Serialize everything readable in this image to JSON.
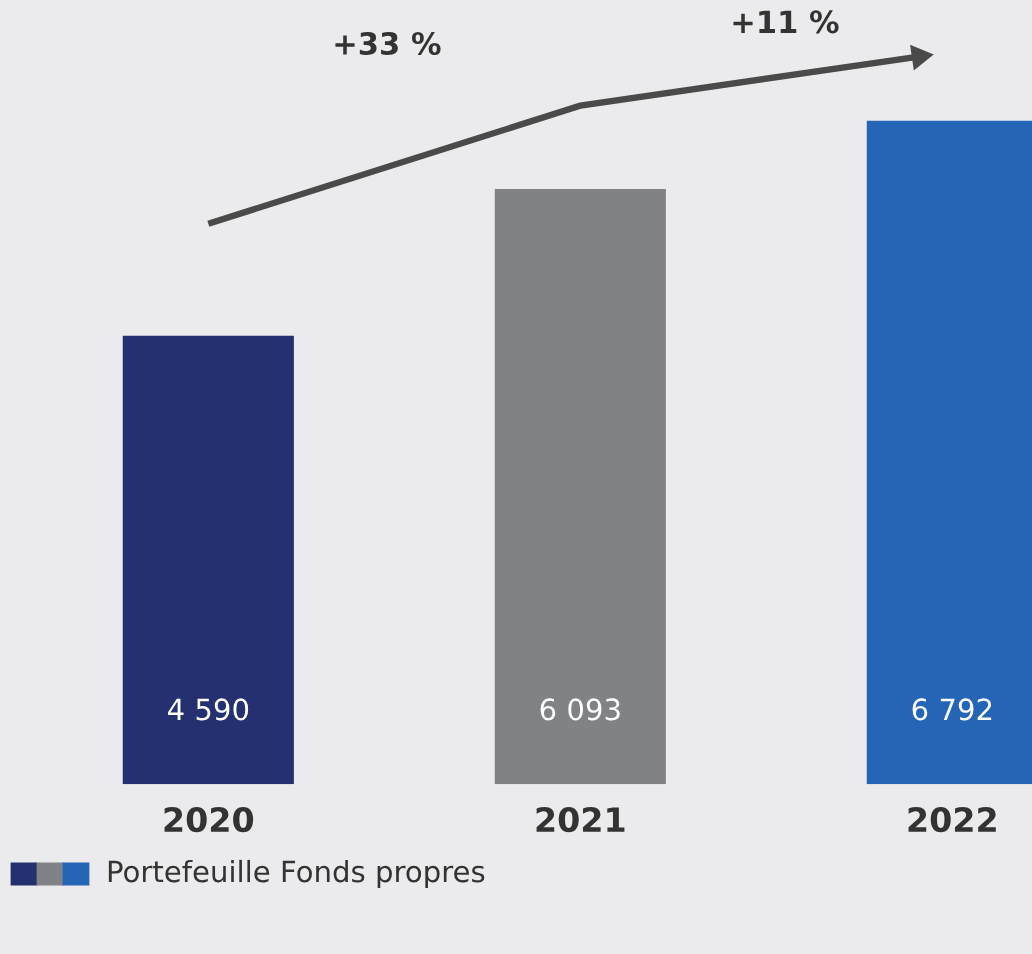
{
  "chart_data": {
    "type": "bar",
    "categories": [
      "2020",
      "2021",
      "2022"
    ],
    "series": [
      {
        "name": "Portefeuille Fonds propres",
        "colors": [
          "#253070",
          "#808285",
          "#2466b5"
        ],
        "values": [
          4590,
          6093,
          6792
        ]
      }
    ],
    "data_labels": true,
    "value_labels": [
      "4 590",
      "6 093",
      "6 792"
    ],
    "annotations": [
      "+33 %",
      "+11 %"
    ],
    "legend": "bottom left",
    "grid": false
  }
}
